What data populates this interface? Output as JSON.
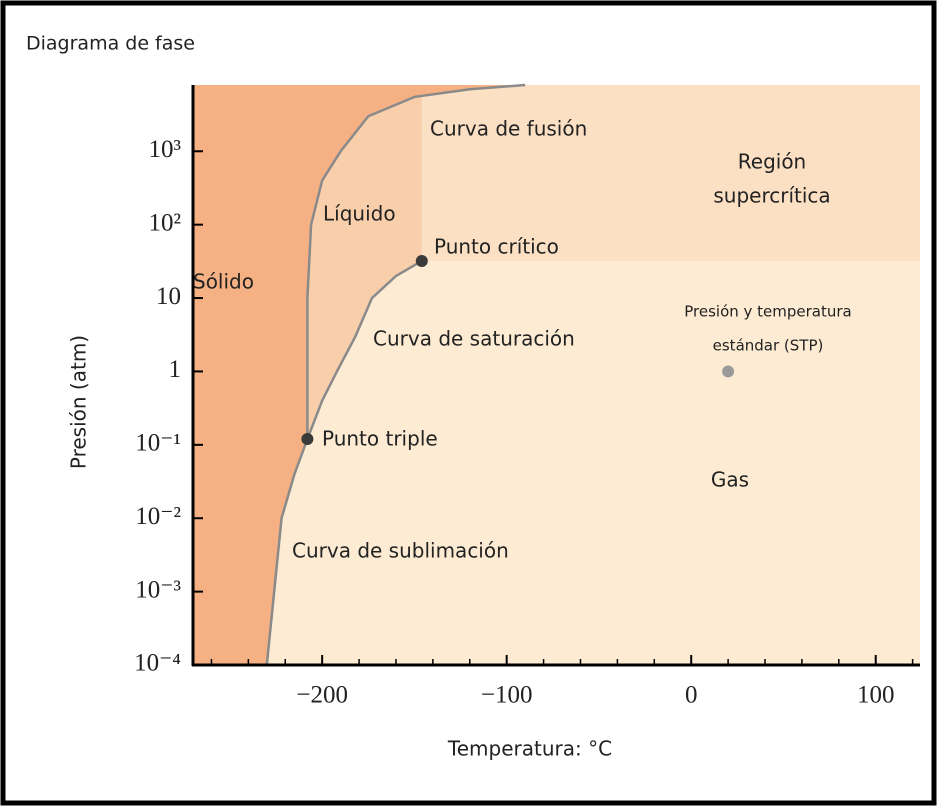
{
  "chart_data": {
    "type": "phase",
    "title": "Diagrama de fase",
    "xlabel": "Temperatura: °C",
    "ylabel": "Presión (atm)",
    "xlim": [
      -270,
      124
    ],
    "ylim": [
      0.0001,
      8000
    ],
    "ylog": true,
    "xticks": [
      {
        "value": -200,
        "label": "−200"
      },
      {
        "value": -100,
        "label": "−100"
      },
      0,
      100
    ],
    "xminor_ticks": [
      -260,
      -240,
      -220,
      -180,
      -160,
      -140,
      -120,
      -80,
      -60,
      -40,
      -20,
      20,
      40,
      60,
      80,
      120
    ],
    "yticks": [
      {
        "value": 0.0001,
        "label": "10⁻⁴"
      },
      {
        "value": 0.001,
        "label": "10⁻³"
      },
      {
        "value": 0.01,
        "label": "10⁻²"
      },
      {
        "value": 0.1,
        "label": "10⁻¹"
      },
      1,
      10,
      {
        "value": 100,
        "label": "10²"
      },
      {
        "value": 1000,
        "label": "10³"
      }
    ],
    "curves": [
      {
        "name": "Curva de sublimación",
        "color": "#8a8a8a",
        "x": [
          -230,
          -226,
          -222,
          -215,
          -208
        ],
        "y": [
          0.0001,
          0.001,
          0.01,
          0.04,
          0.12
        ]
      },
      {
        "name": "Curva de fusión",
        "color": "#8a8a8a",
        "x": [
          -208,
          -208,
          -206,
          -200,
          -190,
          -175,
          -150,
          -120,
          -90
        ],
        "y": [
          0.12,
          10,
          100,
          400,
          1000,
          3000,
          5500,
          7000,
          8000
        ]
      },
      {
        "name": "Curva de saturación",
        "color": "#8a8a8a",
        "x": [
          -208,
          -200,
          -192,
          -182,
          -173,
          -160,
          -146
        ],
        "y": [
          0.12,
          0.4,
          1,
          3,
          10,
          20,
          32
        ]
      }
    ],
    "points": [
      {
        "label": [
          "Punto triple"
        ],
        "x": -208,
        "y": 0.12,
        "color": "#3a3a3a"
      },
      {
        "label": [
          "Punto crítico"
        ],
        "x": -146,
        "y": 32,
        "color": "#3a3a3a"
      },
      {
        "label": [
          "Presión y temperatura",
          "estándar (STP)"
        ],
        "x": 20,
        "y": 1,
        "color": "#9a9a9a"
      }
    ],
    "regions": [
      {
        "label": [
          "Sólido"
        ],
        "color": "#f5b183"
      },
      {
        "label": [
          "Líquido"
        ],
        "color": "#f9cfab"
      },
      {
        "label": [
          "Región",
          "supercrítica"
        ],
        "color": "#fce0c4"
      },
      {
        "label": [
          "Gas"
        ],
        "color": "#fdecd3"
      }
    ]
  }
}
